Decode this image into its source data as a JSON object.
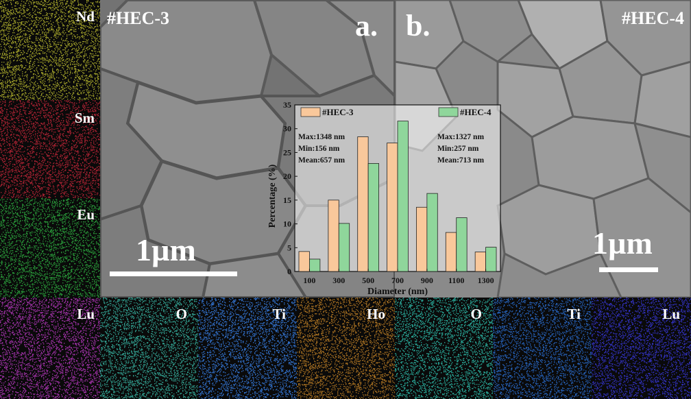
{
  "panels": {
    "a": {
      "letter": "a.",
      "title": "#HEC-3",
      "scale": "1µm"
    },
    "b": {
      "letter": "b.",
      "title": "#HEC-4",
      "scale": "1µm"
    }
  },
  "maps_hec3": [
    {
      "label": "Nd",
      "color": "#c8c832"
    },
    {
      "label": "Sm",
      "color": "#d2283c"
    },
    {
      "label": "Eu",
      "color": "#32be46"
    },
    {
      "label": "Lu",
      "color": "#c83cd2"
    },
    {
      "label": "O",
      "color": "#3cc8b4"
    },
    {
      "label": "Ti",
      "color": "#3c8cff"
    }
  ],
  "maps_hec4": [
    {
      "label": "Ho",
      "color": "#d28c28"
    },
    {
      "label": "O",
      "color": "#32d2be"
    },
    {
      "label": "Ti",
      "color": "#2d78e6"
    },
    {
      "label": "Lu",
      "color": "#3c3cf0"
    }
  ],
  "chart_data": {
    "type": "bar",
    "xlabel": "Diameter (nm)",
    "ylabel": "Percentage (%)",
    "ylim": [
      0,
      35
    ],
    "yticks": [
      0,
      5,
      10,
      15,
      20,
      25,
      30,
      35
    ],
    "categories": [
      "100",
      "300",
      "500",
      "700",
      "900",
      "1100",
      "1300"
    ],
    "series": [
      {
        "name": "#HEC-3",
        "color": "#f9c89b",
        "values": [
          4.2,
          15.0,
          28.3,
          27.0,
          13.5,
          8.2,
          4.1
        ]
      },
      {
        "name": "#HEC-4",
        "color": "#8fd69b",
        "values": [
          2.6,
          10.1,
          22.7,
          31.6,
          16.4,
          11.3,
          5.1
        ]
      }
    ],
    "annotations": [
      {
        "series": "#HEC-3",
        "lines": [
          "Max:1348 nm",
          "Min:156 nm",
          "Mean:657 nm"
        ]
      },
      {
        "series": "#HEC-4",
        "lines": [
          "Max:1327 nm",
          "Min:257 nm",
          "Mean:713 nm"
        ]
      }
    ],
    "legend_position": "top"
  }
}
